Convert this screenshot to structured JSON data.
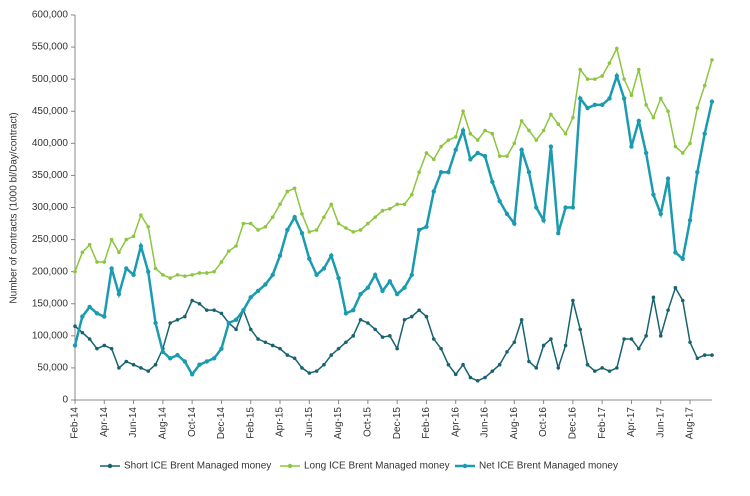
{
  "chart_data": {
    "type": "line",
    "ylabel": "Number of contracts (1000 bl/Day/contract)",
    "categories": [
      "Feb-14",
      null,
      null,
      null,
      "Apr-14",
      null,
      null,
      null,
      "Jun-14",
      null,
      null,
      null,
      "Aug-14",
      null,
      null,
      null,
      "Oct-14",
      null,
      null,
      null,
      "Dec-14",
      null,
      null,
      null,
      "Feb-15",
      null,
      null,
      null,
      "Apr-15",
      null,
      null,
      null,
      "Jun-15",
      null,
      null,
      null,
      "Aug-15",
      null,
      null,
      null,
      "Oct-15",
      null,
      null,
      null,
      "Dec-15",
      null,
      null,
      null,
      "Feb-16",
      null,
      null,
      null,
      "Apr-16",
      null,
      null,
      null,
      "Jun-16",
      null,
      null,
      null,
      "Aug-16",
      null,
      null,
      null,
      "Oct-16",
      null,
      null,
      null,
      "Dec-16",
      null,
      null,
      null,
      "Feb-17",
      null,
      null,
      null,
      "Apr-17",
      null,
      null,
      null,
      "Jun-17",
      null,
      null,
      null,
      "Aug-17",
      null,
      null,
      null
    ],
    "series": [
      {
        "name": "Short ICE Brent Managed money",
        "color": "#17636f",
        "values": [
          115000,
          105000,
          95000,
          80000,
          85000,
          80000,
          50000,
          60000,
          55000,
          50000,
          45000,
          55000,
          80000,
          120000,
          125000,
          130000,
          155000,
          150000,
          140000,
          140000,
          135000,
          120000,
          110000,
          140000,
          110000,
          95000,
          90000,
          85000,
          80000,
          70000,
          65000,
          50000,
          42000,
          45000,
          55000,
          70000,
          80000,
          90000,
          100000,
          125000,
          120000,
          110000,
          98000,
          100000,
          80000,
          125000,
          130000,
          140000,
          130000,
          95000,
          80000,
          55000,
          40000,
          55000,
          35000,
          30000,
          35000,
          45000,
          55000,
          75000,
          90000,
          125000,
          60000,
          50000,
          85000,
          95000,
          50000,
          85000,
          155000,
          110000,
          55000,
          45000,
          50000,
          45000,
          50000,
          95000,
          95000,
          80000,
          100000,
          160000,
          100000,
          140000,
          175000,
          155000,
          90000,
          65000,
          70000,
          70000
        ]
      },
      {
        "name": "Long ICE Brent Managed money",
        "color": "#8cc63f",
        "values": [
          200000,
          230000,
          242000,
          215000,
          215000,
          250000,
          230000,
          250000,
          255000,
          288000,
          270000,
          205000,
          195000,
          190000,
          195000,
          193000,
          195000,
          198000,
          198000,
          200000,
          215000,
          232000,
          240000,
          275000,
          275000,
          265000,
          270000,
          285000,
          305000,
          325000,
          330000,
          290000,
          262000,
          265000,
          285000,
          305000,
          275000,
          268000,
          262000,
          265000,
          275000,
          285000,
          295000,
          298000,
          305000,
          305000,
          320000,
          355000,
          385000,
          375000,
          395000,
          405000,
          410000,
          450000,
          415000,
          405000,
          420000,
          415000,
          380000,
          380000,
          400000,
          435000,
          420000,
          405000,
          420000,
          445000,
          430000,
          415000,
          440000,
          515000,
          500000,
          500000,
          505000,
          525000,
          548000,
          500000,
          475000,
          515000,
          460000,
          440000,
          470000,
          450000,
          395000,
          385000,
          400000,
          455000,
          490000,
          530000
        ]
      },
      {
        "name": "Net ICE Brent Managed money",
        "color": "#1a9bb0",
        "values": [
          85000,
          130000,
          145000,
          135000,
          130000,
          205000,
          165000,
          205000,
          195000,
          240000,
          200000,
          120000,
          75000,
          65000,
          70000,
          60000,
          40000,
          55000,
          60000,
          65000,
          80000,
          120000,
          125000,
          140000,
          160000,
          170000,
          180000,
          195000,
          225000,
          265000,
          285000,
          260000,
          220000,
          195000,
          205000,
          225000,
          190000,
          135000,
          140000,
          165000,
          175000,
          195000,
          170000,
          185000,
          165000,
          175000,
          195000,
          265000,
          270000,
          325000,
          355000,
          355000,
          390000,
          420000,
          375000,
          385000,
          380000,
          340000,
          310000,
          290000,
          275000,
          390000,
          355000,
          300000,
          280000,
          395000,
          260000,
          300000,
          300000,
          470000,
          455000,
          460000,
          460000,
          470000,
          505000,
          470000,
          395000,
          435000,
          385000,
          320000,
          290000,
          345000,
          230000,
          220000,
          280000,
          355000,
          415000,
          465000
        ]
      }
    ],
    "ylim": [
      0,
      600000
    ],
    "yticks": [
      0,
      {
        "value": 50000,
        "label": "50,000"
      },
      {
        "value": 100000,
        "label": "100,000"
      },
      {
        "value": 150000,
        "label": "150,000"
      },
      {
        "value": 200000,
        "label": "200,000"
      },
      {
        "value": 250000,
        "label": "250,000"
      },
      {
        "value": 300000,
        "label": "300,000"
      },
      {
        "value": 350000,
        "label": "350,000"
      },
      {
        "value": 400000,
        "label": "400,000"
      },
      {
        "value": 450000,
        "label": "450,000"
      },
      {
        "value": 500000,
        "label": "500,000"
      },
      {
        "value": 550000,
        "label": "550,000"
      },
      {
        "value": 600000,
        "label": "600,000"
      }
    ],
    "grid": false,
    "legend": "bottom"
  }
}
